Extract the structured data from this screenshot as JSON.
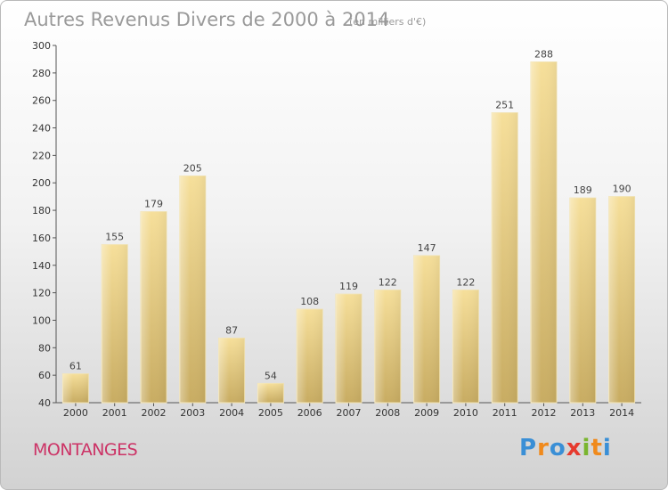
{
  "chart_data": {
    "type": "bar",
    "title": "Autres Revenus Divers de 2000 à 2014",
    "subtitle": "(en milliers d'€)",
    "categories": [
      "2000",
      "2001",
      "2002",
      "2003",
      "2004",
      "2005",
      "2006",
      "2007",
      "2008",
      "2009",
      "2010",
      "2011",
      "2012",
      "2013",
      "2014"
    ],
    "values": [
      61,
      155,
      179,
      205,
      87,
      54,
      108,
      119,
      122,
      147,
      122,
      251,
      288,
      189,
      190
    ],
    "ylim": [
      40,
      300
    ],
    "yticks": [
      40,
      60,
      80,
      100,
      120,
      140,
      160,
      180,
      200,
      220,
      240,
      260,
      280,
      300
    ],
    "grid": false,
    "bar_color": "#e7cf83"
  },
  "commune": "MONTANGES",
  "logo": {
    "text": "Proxiti",
    "colors": [
      "#3a8fd6",
      "#f08a1c",
      "#3a8fd6",
      "#e63a2e",
      "#7ab52f",
      "#f08a1c",
      "#3a8fd6"
    ]
  }
}
